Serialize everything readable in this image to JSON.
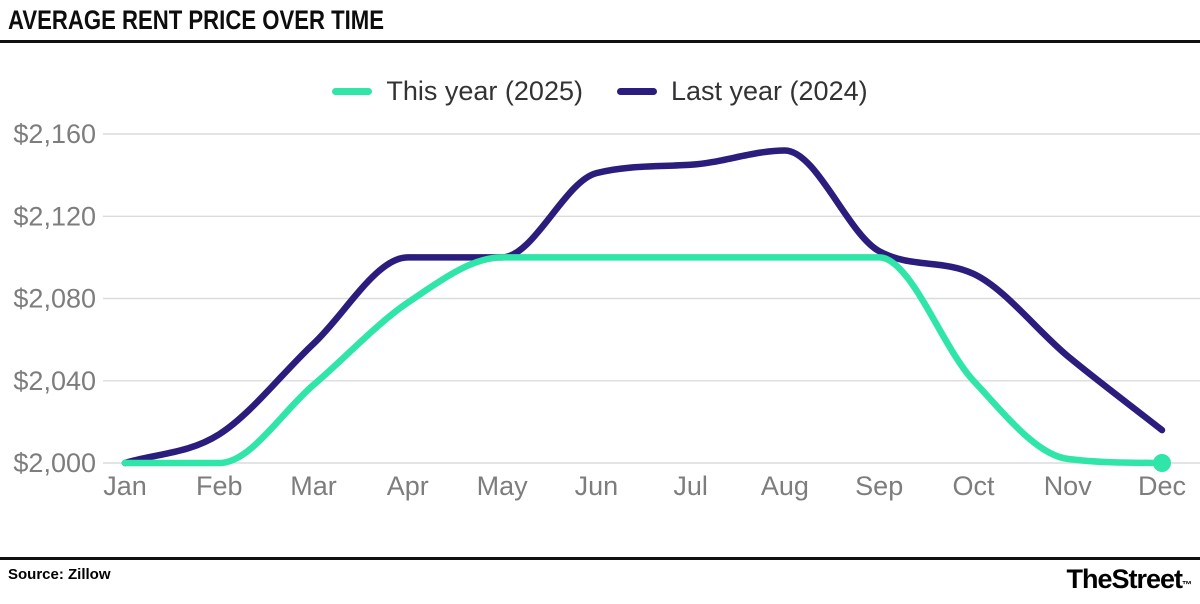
{
  "header": {
    "title": "AVERAGE RENT PRICE OVER TIME"
  },
  "chart_data": {
    "type": "line",
    "title": "Average Rent Price Over Time",
    "categories": [
      "Jan",
      "Feb",
      "Mar",
      "Apr",
      "May",
      "Jun",
      "Jul",
      "Aug",
      "Sep",
      "Oct",
      "Nov",
      "Dec"
    ],
    "series": [
      {
        "name": "This year (2025)",
        "color": "#2fe5a7",
        "values": [
          2000,
          2000,
          2038,
          2078,
          2100,
          2100,
          2100,
          2100,
          2100,
          2040,
          2002,
          2000
        ],
        "end_dot": true
      },
      {
        "name": "Last year (2024)",
        "color": "#2b1d7d",
        "values": [
          2000,
          2014,
          2058,
          2100,
          2100,
          2141,
          2145,
          2152,
          2103,
          2092,
          2052,
          2016
        ],
        "end_dot": false
      }
    ],
    "xlabel": "",
    "ylabel": "",
    "ylim": [
      2000,
      2160
    ],
    "y_ticks": [
      2000,
      2040,
      2080,
      2120,
      2160
    ],
    "y_tick_labels": [
      "$2,000",
      "$2,040",
      "$2,080",
      "$2,120",
      "$2,160"
    ],
    "grid": true,
    "legend_position": "top"
  },
  "footer": {
    "source": "Source: Zillow",
    "brand": "TheStreet",
    "brand_mark": "™"
  }
}
